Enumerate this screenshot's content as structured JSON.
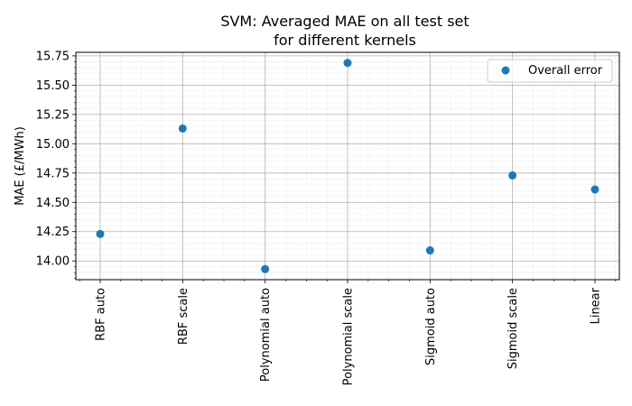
{
  "chart_data": {
    "type": "scatter",
    "title_lines": [
      "SVM: Averaged MAE on all test set",
      "for different kernels"
    ],
    "xlabel": "",
    "ylabel": "MAE (£/MWh)",
    "categories": [
      "RBF auto",
      "RBF scale",
      "Polynomial auto",
      "Polynomial scale",
      "Sigmoid auto",
      "Sigmoid scale",
      "Linear"
    ],
    "series": [
      {
        "name": "Overall error",
        "color": "#1f77b4",
        "values": [
          14.23,
          15.13,
          13.93,
          15.69,
          14.09,
          14.73,
          14.61
        ]
      }
    ],
    "ylim": [
      13.84,
      15.78
    ],
    "yticks": [
      14.0,
      14.25,
      14.5,
      14.75,
      15.0,
      15.25,
      15.5,
      15.75
    ],
    "ytick_labels": [
      "14.00",
      "14.25",
      "14.50",
      "14.75",
      "15.00",
      "15.25",
      "15.50",
      "15.75"
    ],
    "grid": true,
    "minor_grid": true,
    "legend_position": "top-right"
  }
}
